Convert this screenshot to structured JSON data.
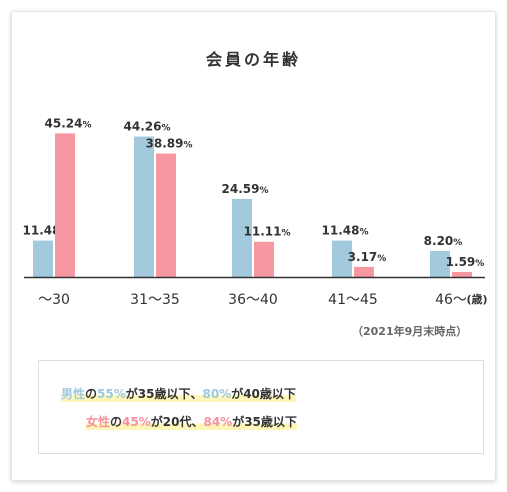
{
  "title": "会員の年齢",
  "note": "（2021年9月末時点）",
  "colors": {
    "male": "#a3cadc",
    "female": "#f797a2",
    "axis": "#333333"
  },
  "chart_data": {
    "type": "bar",
    "categories": [
      "～30",
      "31～35",
      "36～40",
      "41～45",
      "46～"
    ],
    "unit_label": "(歳)",
    "value_suffix": "%",
    "series": [
      {
        "values": [
          11.48,
          44.26,
          24.59,
          11.48,
          8.2
        ],
        "labels": [
          "11.48",
          "44.26",
          "24.59",
          "11.48",
          "8.20"
        ]
      },
      {
        "values": [
          45.24,
          38.89,
          11.11,
          3.17,
          1.59
        ],
        "labels": [
          "45.24",
          "38.89",
          "11.11",
          "3.17",
          "1.59"
        ]
      }
    ],
    "ylim": [
      0,
      46
    ],
    "grid": false,
    "legend": "none"
  },
  "summary": {
    "line1": {
      "prefix": "男性",
      "connector": "の",
      "pct1": "55%",
      "mid": "が35歳以下、",
      "pct2": "80%",
      "suffix": "が40歳以下"
    },
    "line2": {
      "prefix": "女性",
      "connector": "の",
      "pct1": "45%",
      "mid": "が20代、",
      "pct2": "84%",
      "suffix": "が35歳以下"
    }
  }
}
